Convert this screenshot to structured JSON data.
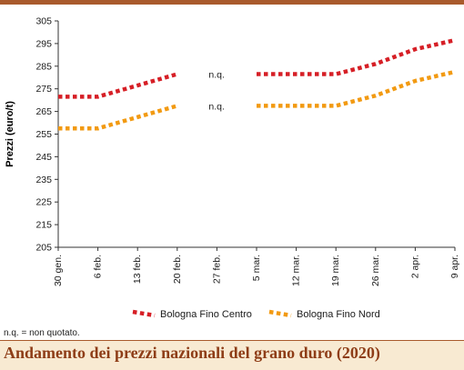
{
  "chart_data": {
    "type": "line",
    "title": "Andamento dei prezzi nazionali del grano duro (2020)",
    "ylabel": "Prezzi (euro/t)",
    "xlabel": "",
    "ylim": [
      205,
      305
    ],
    "yticks": [
      205,
      215,
      225,
      235,
      245,
      255,
      265,
      275,
      285,
      295,
      305
    ],
    "categories": [
      "30 gen.",
      "6 feb.",
      "13 feb.",
      "20 feb.",
      "27 feb.",
      "5 mar.",
      "12 mar.",
      "19 mar.",
      "26 mar.",
      "2 apr.",
      "9 apr."
    ],
    "series": [
      {
        "name": "Bologna Fino Centro",
        "color": "#d61f26",
        "values": [
          271.5,
          271.5,
          276.5,
          281.5,
          null,
          281.5,
          281.5,
          281.5,
          286,
          292.5,
          296.5
        ]
      },
      {
        "name": "Bologna Fino Nord",
        "color": "#f29a12",
        "values": [
          257.5,
          257.5,
          262.5,
          267.5,
          null,
          267.5,
          267.5,
          267.5,
          272,
          278.5,
          282.5
        ]
      }
    ],
    "annotations": [
      "n.q.",
      "n.q."
    ],
    "grid": false,
    "legend": "bottom"
  },
  "note": "n.q. = non quotato.",
  "footer_title": "Andamento dei prezzi nazionali del grano duro (2020)"
}
